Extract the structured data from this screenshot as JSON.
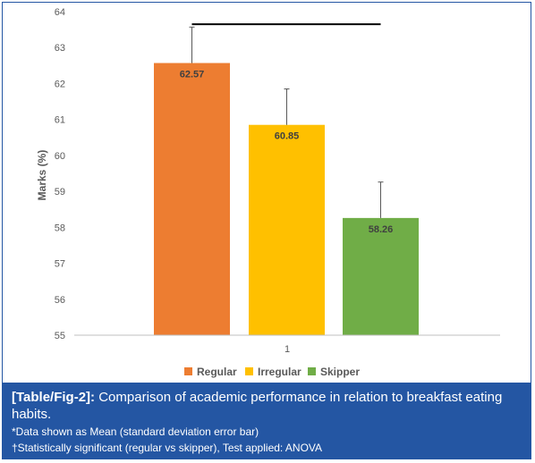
{
  "chart_data": {
    "type": "bar",
    "categories": [
      "1"
    ],
    "series": [
      {
        "name": "Regular",
        "values": [
          62.57
        ],
        "error": [
          1.0
        ],
        "color": "#ed7d31"
      },
      {
        "name": "Irregular",
        "values": [
          60.85
        ],
        "error": [
          1.0
        ],
        "color": "#ffc000"
      },
      {
        "name": "Skipper",
        "values": [
          58.26
        ],
        "error": [
          1.0
        ],
        "color": "#70ad47"
      }
    ],
    "data_labels": [
      "62.57",
      "60.85",
      "58.26"
    ],
    "title": "",
    "xlabel": "",
    "ylabel": "Marks (%)",
    "ylim": [
      55,
      64
    ],
    "yticks": [
      55,
      56,
      57,
      58,
      59,
      60,
      61,
      62,
      63,
      64
    ],
    "grid": false,
    "legend_position": "bottom",
    "significance_bracket": {
      "from": "Regular",
      "to": "Skipper",
      "y": 63.65
    }
  },
  "caption": {
    "label": "[Table/Fig-2]:",
    "text": "Comparison of academic performance in relation to breakfast eating habits.",
    "note1": "*Data shown as Mean (standard deviation error bar)",
    "note2": "†Statistically significant (regular vs skipper), Test applied: ANOVA"
  },
  "colors": {
    "caption_bg": "#2456a3",
    "axis": "#bfbfbf",
    "text": "#595959"
  }
}
